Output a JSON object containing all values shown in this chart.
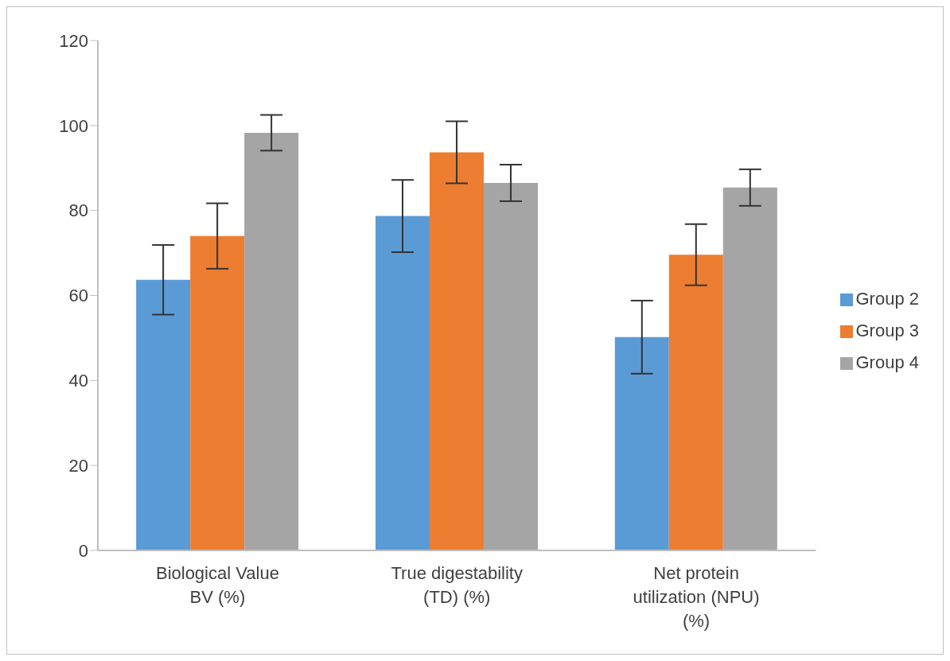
{
  "chart_data": {
    "type": "bar",
    "categories": [
      "Biological Value BV (%)",
      "True digestability (TD) (%)",
      "Net protein utilization (NPU) (%)"
    ],
    "series": [
      {
        "name": "Group 2",
        "color": "#5b9bd5",
        "values": [
          63.7,
          78.7,
          50.2
        ],
        "errors": [
          8.2,
          8.5,
          8.6
        ]
      },
      {
        "name": "Group 3",
        "color": "#ed7d31",
        "values": [
          74.0,
          93.7,
          69.6
        ],
        "errors": [
          7.7,
          7.3,
          7.2
        ]
      },
      {
        "name": "Group 4",
        "color": "#a5a5a5",
        "values": [
          98.3,
          86.5,
          85.4
        ],
        "errors": [
          4.2,
          4.3,
          4.3
        ]
      }
    ],
    "ylim": [
      0,
      120
    ],
    "yticks": [
      0,
      20,
      40,
      60,
      80,
      100,
      120
    ],
    "grid": false,
    "legend": "right"
  }
}
